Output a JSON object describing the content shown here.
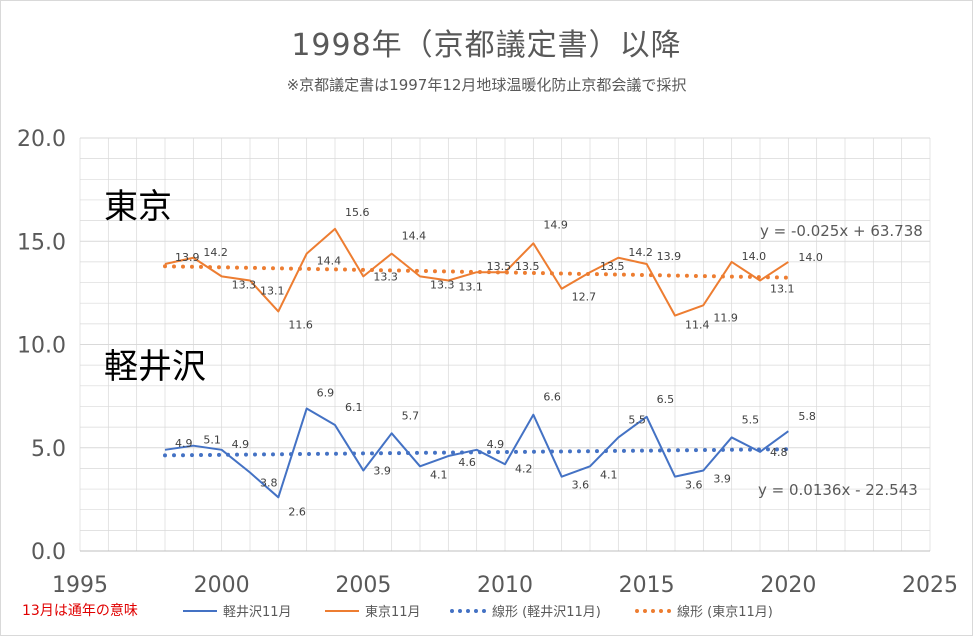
{
  "title": "1998年（京都議定書）以降",
  "subtitle": "※京都議定書は1997年12月地球温暖化防止京都会議で採択",
  "note": "13月は通年の意味",
  "colors": {
    "tokyo": "#ED7D31",
    "karuizawa": "#4472C4",
    "grid": "#d9d9d9",
    "text": "#595959",
    "note": "#e00000"
  },
  "chart_data": {
    "type": "line",
    "x": [
      1998,
      1999,
      2000,
      2001,
      2002,
      2003,
      2004,
      2005,
      2006,
      2007,
      2008,
      2009,
      2010,
      2011,
      2012,
      2013,
      2014,
      2015,
      2016,
      2017,
      2018,
      2019,
      2020
    ],
    "xlim": [
      1995,
      2025
    ],
    "ylim": [
      0,
      20
    ],
    "xticks": [
      1995,
      2000,
      2005,
      2010,
      2015,
      2020,
      2025
    ],
    "yticks": [
      "0.0",
      "5.0",
      "10.0",
      "15.0",
      "20.0"
    ],
    "grid": true,
    "series": [
      {
        "key": "karuizawa",
        "name": "軽井沢11月",
        "region_label": "軽井沢",
        "values": [
          4.9,
          5.1,
          4.9,
          3.8,
          2.6,
          6.9,
          6.1,
          3.9,
          5.7,
          4.1,
          4.6,
          4.9,
          4.2,
          6.6,
          3.6,
          4.1,
          5.5,
          6.5,
          3.6,
          3.9,
          5.5,
          4.8,
          5.8
        ],
        "labels": [
          "4.9",
          "5.1",
          "4.9",
          "3.8",
          "2.6",
          "6.9",
          "6.1",
          "3.9",
          "5.7",
          "4.1",
          "4.6",
          "4.9",
          "4.2",
          "6.6",
          "3.6",
          "4.1",
          "5.5",
          "6.5",
          "3.6",
          "3.9",
          "5.5",
          "4.8",
          "5.8"
        ]
      },
      {
        "key": "tokyo",
        "name": "東京11月",
        "region_label": "東京",
        "values": [
          13.9,
          14.2,
          13.3,
          13.1,
          11.6,
          14.4,
          15.6,
          13.3,
          14.4,
          13.3,
          13.1,
          13.5,
          13.5,
          14.9,
          12.7,
          13.5,
          14.2,
          13.9,
          11.4,
          11.9,
          14.0,
          13.1,
          14.0
        ],
        "labels": [
          "13.9",
          "14.2",
          "13.3",
          "13.1",
          "11.6",
          "14.4",
          "15.6",
          "13.3",
          "14.4",
          "13.3",
          "13.1",
          "13.5",
          "13.5",
          "14.9",
          "12.7",
          "13.5",
          "14.2",
          "13.9",
          "11.4",
          "11.9",
          "14.0",
          "13.1",
          "14.0"
        ]
      }
    ],
    "trendlines": [
      {
        "key": "karuizawa",
        "name": "線形 (軽井沢11月)",
        "slope": 0.0136,
        "intercept": -22.543,
        "equation": "y = 0.0136x - 22.543"
      },
      {
        "key": "tokyo",
        "name": "線形 (東京11月)",
        "slope": -0.025,
        "intercept": 63.738,
        "equation": "y = -0.025x + 63.738"
      }
    ],
    "legend": [
      "軽井沢11月",
      "東京11月",
      "線形 (軽井沢11月)",
      "線形 (東京11月)"
    ],
    "legend_position": "bottom"
  }
}
